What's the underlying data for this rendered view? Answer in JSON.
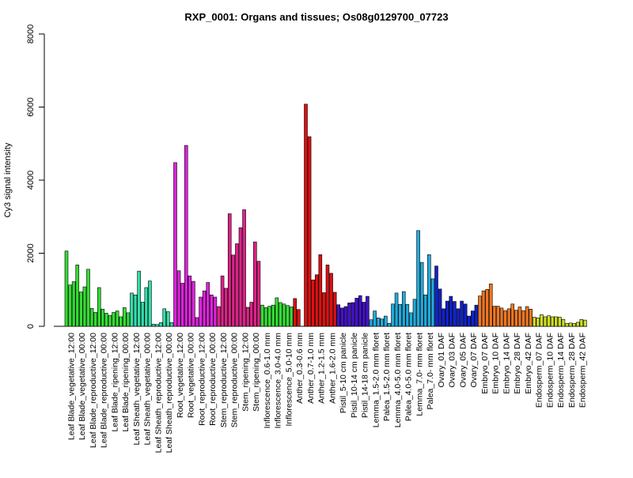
{
  "chart_data": {
    "type": "bar",
    "title": "RXP_0001: Organs and tissues; Os08g0129700_07723",
    "ylabel": "Cy3 signal intensity",
    "xlabel": "",
    "ylim": [
      0,
      8000
    ],
    "yticks": [
      0,
      2000,
      4000,
      6000,
      8000
    ],
    "grid": false,
    "legend": "none",
    "groups": [
      {
        "label": "Leaf Blade_vegetative_12:00",
        "color": "#33dd33",
        "values": [
          2060,
          1130,
          1220
        ]
      },
      {
        "label": "Leaf Blade_vegetative_00:00",
        "color": "#33dd33",
        "values": [
          1680,
          940,
          1080
        ]
      },
      {
        "label": "Leaf Blade_reproductive_12:00",
        "color": "#33dd33",
        "values": [
          1560,
          490,
          380
        ]
      },
      {
        "label": "Leaf Blade_reproductive_00:00",
        "color": "#33dd33",
        "values": [
          1060,
          470,
          360
        ]
      },
      {
        "label": "Leaf Blade_ripening_12:00",
        "color": "#33dd33",
        "values": [
          300,
          380,
          420
        ]
      },
      {
        "label": "Leaf Blade_ripening_00:00",
        "color": "#33dd33",
        "values": [
          260,
          510,
          370
        ]
      },
      {
        "label": "Leaf Sheath_vegetative_12:00",
        "color": "#33ddaa",
        "values": [
          910,
          860,
          1510
        ]
      },
      {
        "label": "Leaf Sheath_vegetative_00:00",
        "color": "#33ddaa",
        "values": [
          660,
          1060,
          1240
        ]
      },
      {
        "label": "Leaf Sheath_reproductive_12:00",
        "color": "#33ddaa",
        "values": [
          60,
          50,
          100
        ]
      },
      {
        "label": "Leaf Sheath_reproductive_00:00",
        "color": "#33ddaa",
        "values": [
          480,
          400,
          100
        ]
      },
      {
        "label": "Root_vegetative_12:00",
        "color": "#dd22dd",
        "values": [
          4480,
          1520,
          1180
        ]
      },
      {
        "label": "Root_vegetative_00:00",
        "color": "#dd22dd",
        "values": [
          4950,
          1380,
          1230
        ]
      },
      {
        "label": "Root_reproductive_12:00",
        "color": "#dd22dd",
        "values": [
          240,
          800,
          970
        ]
      },
      {
        "label": "Root_reproductive_00:00",
        "color": "#dd22dd",
        "values": [
          1200,
          860,
          800
        ]
      },
      {
        "label": "Stem_reproductive_12:00",
        "color": "#dd2288",
        "values": [
          540,
          1380,
          1040
        ]
      },
      {
        "label": "Stem_reproductive_00:00",
        "color": "#dd2288",
        "values": [
          3080,
          1950,
          2260
        ]
      },
      {
        "label": "Stem_ripening_12:00",
        "color": "#dd2288",
        "values": [
          2700,
          3190,
          520
        ]
      },
      {
        "label": "Stem_ripening_00:00",
        "color": "#dd2288",
        "values": [
          660,
          2310,
          1780
        ]
      },
      {
        "label": "Inflorescence_0.6-1.0 mm",
        "color": "#33dd33",
        "values": [
          580,
          510,
          550
        ]
      },
      {
        "label": "Inflorescence_3.0-4.0 mm",
        "color": "#33dd33",
        "values": [
          580,
          780,
          650
        ]
      },
      {
        "label": "Inflorescence_5.0-10 mm",
        "color": "#33dd33",
        "values": [
          610,
          570,
          530
        ]
      },
      {
        "label": "Anther_0.3-0.6 mm",
        "color": "#dd1111",
        "values": [
          760,
          460,
          0
        ]
      },
      {
        "label": "Anther_0.7-1.0 mm",
        "color": "#dd1111",
        "values": [
          6080,
          5190,
          1270
        ]
      },
      {
        "label": "Anther_1.2-1.5 mm",
        "color": "#dd1111",
        "values": [
          1410,
          1960,
          920
        ]
      },
      {
        "label": "Anther_1.6-2.0 mm",
        "color": "#dd1111",
        "values": [
          1680,
          1450,
          930
        ]
      },
      {
        "label": "Pistil_5-10 cm panicle",
        "color": "#4411cc",
        "values": [
          590,
          500,
          540
        ]
      },
      {
        "label": "Pistil_10-14 cm panicle",
        "color": "#4411cc",
        "values": [
          640,
          650,
          770
        ]
      },
      {
        "label": "Pistil_14-18 cm panicle",
        "color": "#4411cc",
        "values": [
          840,
          660,
          820
        ]
      },
      {
        "label": "Lemma_1.5-2.0 mm floret",
        "color": "#22aadd",
        "values": [
          180,
          420,
          230
        ]
      },
      {
        "label": "Palea_1.5-2.0 mm floret",
        "color": "#22aadd",
        "values": [
          200,
          280,
          80
        ]
      },
      {
        "label": "Lemma_4.0-5.0 mm floret",
        "color": "#22aadd",
        "values": [
          610,
          910,
          600
        ]
      },
      {
        "label": "Palea_4.0-5.0 mm floret",
        "color": "#22aadd",
        "values": [
          950,
          600,
          370
        ]
      },
      {
        "label": "Lemma_7.0- mm floret",
        "color": "#22aadd",
        "values": [
          740,
          2620,
          1750
        ]
      },
      {
        "label": "Palea_7.0- mm floret",
        "color": "#22aadd",
        "values": [
          860,
          1960,
          1300
        ]
      },
      {
        "label": "Ovary_01 DAF",
        "color": "#1122cc",
        "values": [
          1650,
          1020,
          480
        ]
      },
      {
        "label": "Ovary_03 DAF",
        "color": "#1122cc",
        "values": [
          690,
          820,
          680
        ]
      },
      {
        "label": "Ovary_05 DAF",
        "color": "#1122cc",
        "values": [
          480,
          690,
          610
        ]
      },
      {
        "label": "Ovary_07 DAF",
        "color": "#1122cc",
        "values": [
          280,
          420,
          580
        ]
      },
      {
        "label": "Embryo_07 DAF",
        "color": "#ee7722",
        "values": [
          830,
          970,
          1010
        ]
      },
      {
        "label": "Embryo_10 DAF",
        "color": "#ee7722",
        "values": [
          1160,
          550,
          550
        ]
      },
      {
        "label": "Embryo_14 DAF",
        "color": "#ee7722",
        "values": [
          500,
          430,
          480
        ]
      },
      {
        "label": "Embryo_28 DAF",
        "color": "#ee7722",
        "values": [
          610,
          440,
          530
        ]
      },
      {
        "label": "Embryo_42 DAF",
        "color": "#ee7722",
        "values": [
          430,
          540,
          470
        ]
      },
      {
        "label": "Endosperm_07 DAF",
        "color": "#ccdd22",
        "values": [
          250,
          230,
          320
        ]
      },
      {
        "label": "Endosperm_10 DAF",
        "color": "#ccdd22",
        "values": [
          260,
          290,
          260
        ]
      },
      {
        "label": "Endosperm_14 DAF",
        "color": "#ccdd22",
        "values": [
          260,
          250,
          190
        ]
      },
      {
        "label": "Endosperm_28 DAF",
        "color": "#ccdd22",
        "values": [
          80,
          90,
          80
        ]
      },
      {
        "label": "Endosperm_42 DAF",
        "color": "#ccdd22",
        "values": [
          110,
          190,
          170
        ]
      }
    ]
  }
}
